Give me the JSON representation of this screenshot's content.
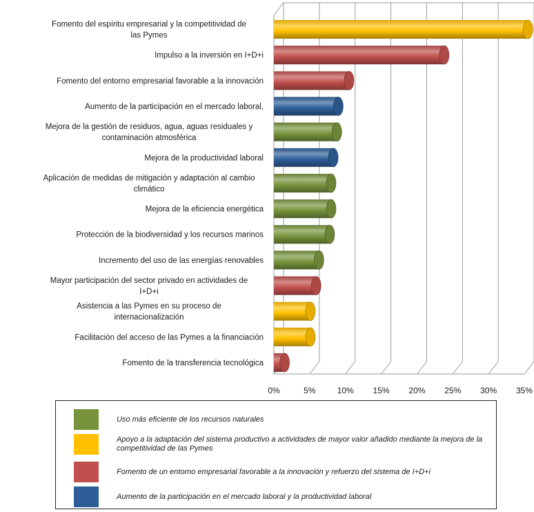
{
  "chart_data": {
    "type": "bar",
    "orientation": "horizontal",
    "title": "",
    "xlabel": "",
    "ylabel": "",
    "xlim": [
      0,
      35
    ],
    "x_ticks": [
      "0%",
      "5%",
      "10%",
      "15%",
      "20%",
      "25%",
      "30%",
      "35%"
    ],
    "grid": true,
    "legend_position": "bottom",
    "bars": [
      {
        "label": "Fomento del espíritu empresarial y la competitividad de las Pymes",
        "value": 35.5,
        "group": "competitividad"
      },
      {
        "label": "Impulso a la inversión en I+D+i",
        "value": 23.8,
        "group": "innovacion"
      },
      {
        "label": "Fomento del entorno empresarial favorable a la innovación",
        "value": 10.5,
        "group": "innovacion"
      },
      {
        "label": "Aumento de la participación en el mercado laboral,",
        "value": 9.0,
        "group": "empleo"
      },
      {
        "label": "Mejora de la gestión de residuos, agua, aguas residuales y contaminación atmosférica",
        "value": 8.8,
        "group": "recursos"
      },
      {
        "label": "Mejora de la productividad laboral",
        "value": 8.3,
        "group": "empleo"
      },
      {
        "label": "Aplicación de medidas de mitigación y adaptación al cambio climático",
        "value": 8.0,
        "group": "recursos"
      },
      {
        "label": "Mejora de la eficiencia energética",
        "value": 8.0,
        "group": "recursos"
      },
      {
        "label": "Protección de la biodiversidad y los recursos marinos",
        "value": 7.8,
        "group": "recursos"
      },
      {
        "label": "Incremento del uso de las energías renovables",
        "value": 6.3,
        "group": "recursos"
      },
      {
        "label": "Mayor participación del sector privado en actividades de I+D+i",
        "value": 5.9,
        "group": "innovacion"
      },
      {
        "label": "Asistencia a las Pymes en su proceso de internacionalización",
        "value": 5.1,
        "group": "competitividad"
      },
      {
        "label": "Facilitación del acceso de las Pymes a la financiación",
        "value": 5.1,
        "group": "competitividad"
      },
      {
        "label": "Fomento de la transferencia tecnológica",
        "value": 1.5,
        "group": "innovacion"
      }
    ],
    "legend": [
      {
        "group": "recursos",
        "text": "Uso más eficiente de los recursos naturales",
        "color": "#77933C"
      },
      {
        "group": "competitividad",
        "text": "Apoyo a la adaptación del sistema productivo a actividades de mayor valor añadido mediante la mejora de la competitividad de las Pymes",
        "color": "#FFC000"
      },
      {
        "group": "innovacion",
        "text": "Fomento de un entorno empresarial favorable a la innovación y refuerzo del sistema de I+D+i",
        "color": "#C0504D"
      },
      {
        "group": "empleo",
        "text": "Aumento de la participación en el mercado laboral y la productividad laboral",
        "color": "#2E5E98"
      }
    ]
  }
}
